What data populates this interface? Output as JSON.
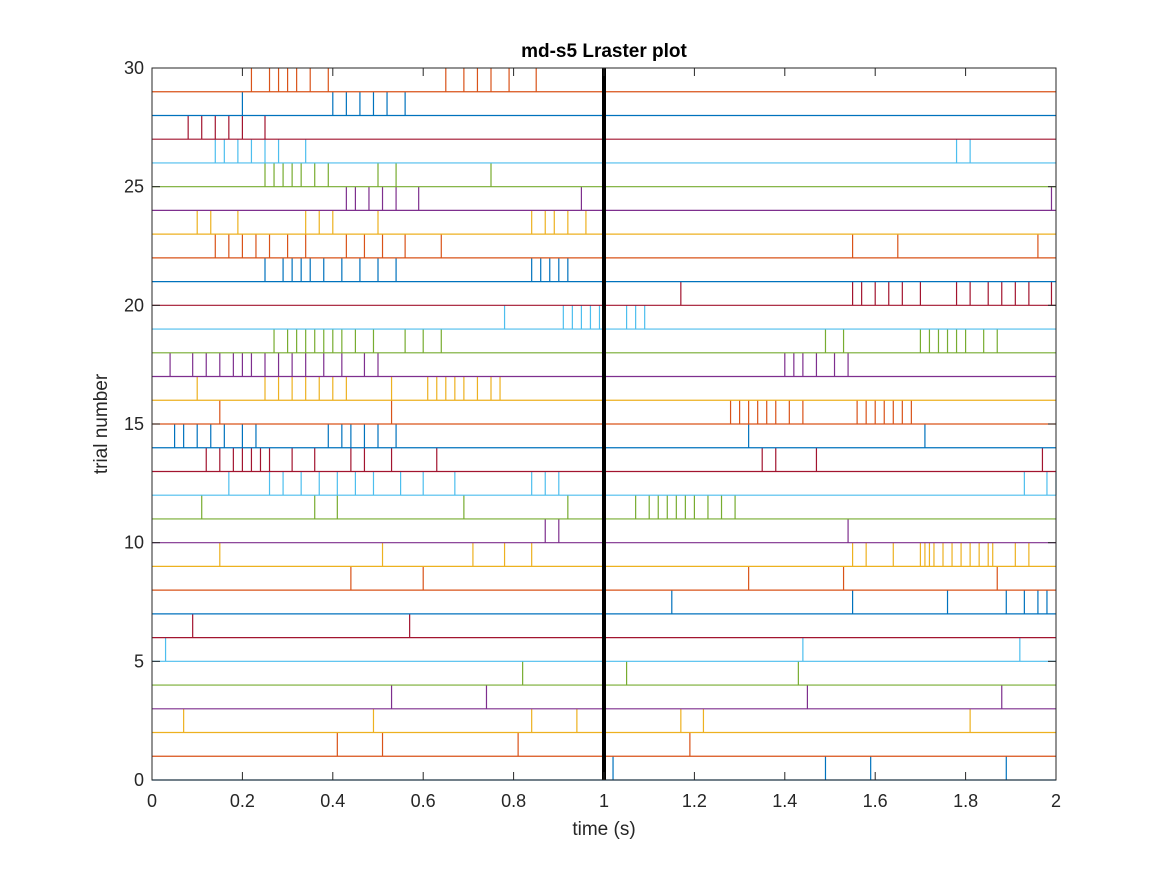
{
  "chart_data": {
    "type": "raster",
    "title": "md-s5 Lraster plot",
    "xlabel": "time (s)",
    "ylabel": "trial number",
    "xlim": [
      0,
      2
    ],
    "ylim": [
      0,
      30
    ],
    "xticks": [
      "0",
      "0.2",
      "0.4",
      "0.6",
      "0.8",
      "1",
      "1.2",
      "1.4",
      "1.6",
      "1.8",
      "2"
    ],
    "yticks": [
      "0",
      "5",
      "10",
      "15",
      "20",
      "25",
      "30"
    ],
    "event_marker_x": 1,
    "grid": false,
    "colors": [
      "#0072bd",
      "#d95319",
      "#edb120",
      "#7e2f8e",
      "#77ac30",
      "#4dbeee",
      "#a2142f"
    ],
    "trials": [
      {
        "trial": 1,
        "color": "#0072bd",
        "spikes": [
          1.02,
          1.49,
          1.59,
          1.89
        ]
      },
      {
        "trial": 2,
        "color": "#d95319",
        "spikes": [
          0.41,
          0.51,
          0.81,
          1.19
        ]
      },
      {
        "trial": 3,
        "color": "#edb120",
        "spikes": [
          0.07,
          0.49,
          0.84,
          0.94,
          1.17,
          1.22,
          1.81
        ]
      },
      {
        "trial": 4,
        "color": "#7e2f8e",
        "spikes": [
          0.53,
          0.74,
          1.45,
          1.88
        ]
      },
      {
        "trial": 5,
        "color": "#77ac30",
        "spikes": [
          0.82,
          1.05,
          1.43
        ]
      },
      {
        "trial": 6,
        "color": "#4dbeee",
        "spikes": [
          0.03,
          1.44,
          1.92
        ]
      },
      {
        "trial": 7,
        "color": "#a2142f",
        "spikes": [
          0.09,
          0.57
        ]
      },
      {
        "trial": 8,
        "color": "#0072bd",
        "spikes": [
          1.15,
          1.55,
          1.76,
          1.89,
          1.93,
          1.96,
          1.98
        ]
      },
      {
        "trial": 9,
        "color": "#d95319",
        "spikes": [
          0.44,
          0.6,
          1.32,
          1.53,
          1.87
        ]
      },
      {
        "trial": 10,
        "color": "#edb120",
        "spikes": [
          0.15,
          0.51,
          0.71,
          0.78,
          0.84,
          1.55,
          1.58,
          1.64,
          1.7,
          1.71,
          1.72,
          1.73,
          1.75,
          1.77,
          1.79,
          1.81,
          1.83,
          1.85,
          1.86,
          1.91,
          1.94
        ]
      },
      {
        "trial": 11,
        "color": "#7e2f8e",
        "spikes": [
          0.87,
          0.9,
          1.54
        ]
      },
      {
        "trial": 12,
        "color": "#77ac30",
        "spikes": [
          0.11,
          0.36,
          0.41,
          0.69,
          0.92,
          1.0,
          1.07,
          1.1,
          1.12,
          1.14,
          1.16,
          1.18,
          1.2,
          1.23,
          1.26,
          1.29
        ]
      },
      {
        "trial": 13,
        "color": "#4dbeee",
        "spikes": [
          0.17,
          0.26,
          0.29,
          0.33,
          0.37,
          0.41,
          0.45,
          0.49,
          0.55,
          0.6,
          0.67,
          0.84,
          0.87,
          0.9,
          1.93,
          1.98,
          2.0
        ]
      },
      {
        "trial": 14,
        "color": "#a2142f",
        "spikes": [
          0.12,
          0.15,
          0.18,
          0.2,
          0.22,
          0.24,
          0.26,
          0.31,
          0.36,
          0.44,
          0.47,
          0.53,
          0.63,
          1.35,
          1.38,
          1.47,
          1.97
        ]
      },
      {
        "trial": 15,
        "color": "#0072bd",
        "spikes": [
          0.05,
          0.07,
          0.1,
          0.13,
          0.16,
          0.2,
          0.23,
          0.39,
          0.42,
          0.44,
          0.47,
          0.5,
          0.54,
          1.32,
          1.71
        ]
      },
      {
        "trial": 16,
        "color": "#d95319",
        "spikes": [
          0.15,
          0.53,
          1.28,
          1.3,
          1.32,
          1.34,
          1.36,
          1.38,
          1.41,
          1.44,
          1.56,
          1.58,
          1.6,
          1.62,
          1.64,
          1.66,
          1.68
        ]
      },
      {
        "trial": 17,
        "color": "#edb120",
        "spikes": [
          0.1,
          0.25,
          0.28,
          0.31,
          0.34,
          0.37,
          0.4,
          0.43,
          0.53,
          0.61,
          0.63,
          0.65,
          0.67,
          0.69,
          0.72,
          0.75,
          0.77
        ]
      },
      {
        "trial": 18,
        "color": "#7e2f8e",
        "spikes": [
          0.04,
          0.09,
          0.12,
          0.15,
          0.18,
          0.2,
          0.22,
          0.25,
          0.28,
          0.31,
          0.34,
          0.38,
          0.42,
          0.47,
          0.5,
          1.4,
          1.42,
          1.44,
          1.47,
          1.51,
          1.54
        ]
      },
      {
        "trial": 19,
        "color": "#77ac30",
        "spikes": [
          0.27,
          0.3,
          0.32,
          0.34,
          0.36,
          0.38,
          0.4,
          0.42,
          0.45,
          0.49,
          0.56,
          0.6,
          0.64,
          1.49,
          1.53,
          1.7,
          1.72,
          1.74,
          1.76,
          1.78,
          1.8,
          1.84,
          1.87
        ]
      },
      {
        "trial": 20,
        "color": "#4dbeee",
        "spikes": [
          0.78,
          0.91,
          0.93,
          0.95,
          0.97,
          0.99,
          1.05,
          1.07,
          1.09
        ]
      },
      {
        "trial": 21,
        "color": "#a2142f",
        "spikes": [
          1.17,
          1.55,
          1.57,
          1.6,
          1.63,
          1.66,
          1.7,
          1.78,
          1.81,
          1.85,
          1.88,
          1.91,
          1.94,
          1.99
        ]
      },
      {
        "trial": 22,
        "color": "#0072bd",
        "spikes": [
          0.25,
          0.29,
          0.31,
          0.33,
          0.35,
          0.38,
          0.42,
          0.46,
          0.5,
          0.54,
          0.84,
          0.86,
          0.88,
          0.9,
          0.92
        ]
      },
      {
        "trial": 23,
        "color": "#d95319",
        "spikes": [
          0.14,
          0.17,
          0.2,
          0.23,
          0.26,
          0.3,
          0.34,
          0.43,
          0.47,
          0.51,
          0.56,
          0.64,
          1.55,
          1.65,
          1.96
        ]
      },
      {
        "trial": 24,
        "color": "#edb120",
        "spikes": [
          0.1,
          0.13,
          0.19,
          0.34,
          0.37,
          0.4,
          0.5,
          0.84,
          0.87,
          0.89,
          0.92,
          0.96
        ]
      },
      {
        "trial": 25,
        "color": "#7e2f8e",
        "spikes": [
          0.43,
          0.45,
          0.48,
          0.51,
          0.54,
          0.59,
          0.95,
          1.99
        ]
      },
      {
        "trial": 26,
        "color": "#77ac30",
        "spikes": [
          0.25,
          0.27,
          0.29,
          0.31,
          0.33,
          0.36,
          0.39,
          0.5,
          0.54,
          0.75
        ]
      },
      {
        "trial": 27,
        "color": "#4dbeee",
        "spikes": [
          0.14,
          0.16,
          0.19,
          0.22,
          0.25,
          0.28,
          0.34,
          1.78,
          1.81
        ]
      },
      {
        "trial": 28,
        "color": "#a2142f",
        "spikes": [
          0.08,
          0.11,
          0.14,
          0.17,
          0.2,
          0.25
        ]
      },
      {
        "trial": 29,
        "color": "#0072bd",
        "spikes": [
          0.2,
          0.4,
          0.43,
          0.46,
          0.49,
          0.52,
          0.56
        ]
      },
      {
        "trial": 30,
        "color": "#d95319",
        "spikes": [
          0.22,
          0.26,
          0.28,
          0.3,
          0.32,
          0.35,
          0.39,
          0.65,
          0.69,
          0.72,
          0.75,
          0.79,
          0.85
        ]
      }
    ]
  }
}
